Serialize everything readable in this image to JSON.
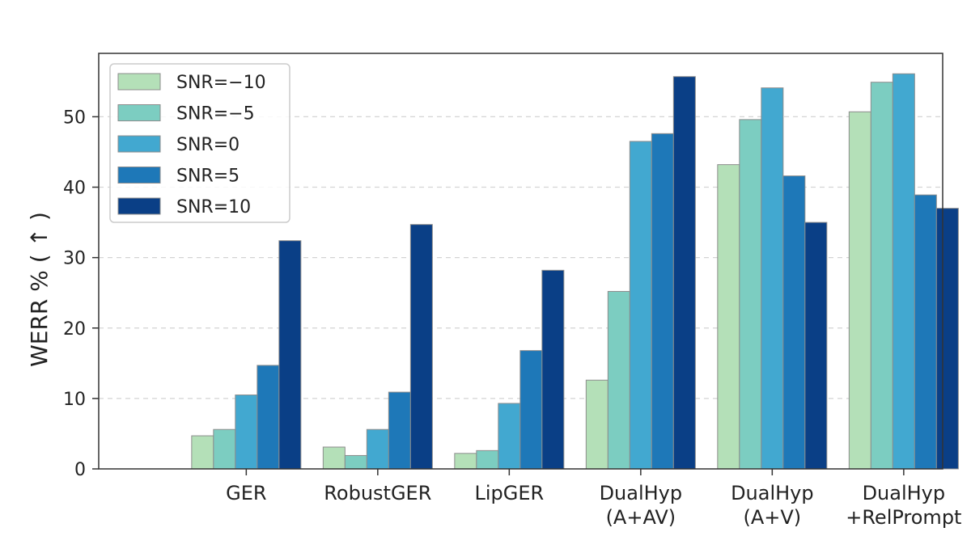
{
  "chart_data": {
    "type": "bar",
    "title": "",
    "xlabel": "",
    "ylabel": "WERR % ( ↑ )",
    "ylim": [
      0,
      59
    ],
    "yticks": [
      0,
      10,
      20,
      30,
      40,
      50
    ],
    "grid": true,
    "legend_position": "top-left",
    "categories": [
      [
        "GER"
      ],
      [
        "RobustGER"
      ],
      [
        "LipGER"
      ],
      [
        "DualHyp",
        "(A+AV)"
      ],
      [
        "DualHyp",
        "(A+V)"
      ],
      [
        "DualHyp",
        "+RelPrompt"
      ]
    ],
    "series": [
      {
        "name": "SNR=−10",
        "color": "#b4e0b8",
        "values": [
          4.7,
          3.1,
          2.2,
          12.6,
          43.2,
          50.7
        ]
      },
      {
        "name": "SNR=−5",
        "color": "#7ccdc1",
        "values": [
          5.6,
          1.9,
          2.6,
          25.2,
          49.6,
          54.9
        ]
      },
      {
        "name": "SNR=0",
        "color": "#42a8d0",
        "values": [
          10.5,
          5.6,
          9.3,
          46.5,
          54.1,
          56.1
        ]
      },
      {
        "name": "SNR=5",
        "color": "#1e78b8",
        "values": [
          14.7,
          10.9,
          16.8,
          47.6,
          41.6,
          38.9
        ]
      },
      {
        "name": "SNR=10",
        "color": "#0a3f86",
        "values": [
          32.4,
          34.7,
          28.2,
          55.7,
          35.0,
          37.0
        ]
      }
    ]
  }
}
